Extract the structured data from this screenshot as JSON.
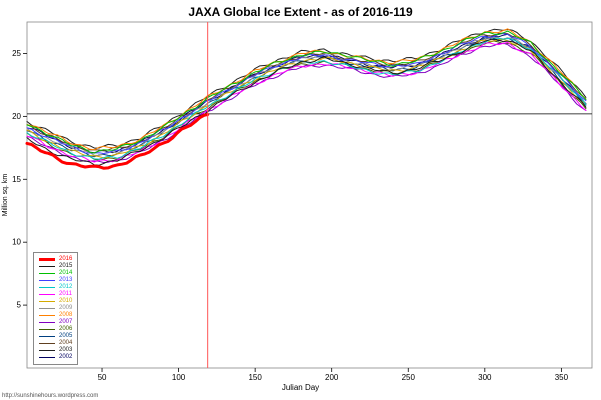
{
  "title": "JAXA Global Ice Extent - as of 2016-119",
  "watermark": "http://sunshinehours.wordpress.com",
  "chart_data": {
    "type": "line",
    "title": "JAXA Global Ice Extent - as of 2016-119",
    "xlabel": "Julian Day",
    "ylabel": "Million sq. km",
    "xlim": [
      1,
      370
    ],
    "ylim": [
      0,
      27.5
    ],
    "x_ticks": [
      50,
      100,
      150,
      200,
      250,
      300,
      350
    ],
    "y_ticks": [
      5,
      10,
      15,
      20,
      25
    ],
    "grid": false,
    "legend_position": "bottom-left",
    "ref_line_h": 20.2,
    "ref_line_v": 119,
    "x": [
      1,
      15,
      30,
      45,
      60,
      75,
      90,
      105,
      119,
      135,
      150,
      165,
      180,
      195,
      210,
      225,
      240,
      255,
      270,
      285,
      300,
      315,
      330,
      345,
      366
    ],
    "series": [
      {
        "name": "2016",
        "color": "#FF0000",
        "width": 3,
        "values": [
          17.8,
          17.0,
          16.2,
          15.9,
          16.1,
          16.8,
          17.9,
          19.1,
          20.2
        ]
      },
      {
        "name": "2015",
        "color": "#1A1A1A",
        "width": 1,
        "values": [
          18.2,
          17.3,
          16.6,
          16.2,
          16.5,
          17.3,
          18.3,
          19.4,
          20.5,
          21.7,
          22.7,
          23.6,
          24.3,
          24.6,
          24.2,
          23.8,
          23.4,
          23.8,
          24.4,
          25.2,
          26.0,
          26.1,
          25.2,
          23.3,
          20.7
        ]
      },
      {
        "name": "2014",
        "color": "#00C000",
        "width": 1,
        "values": [
          19.4,
          18.6,
          17.7,
          17.2,
          17.4,
          18.1,
          19.1,
          20.3,
          21.4,
          22.5,
          23.5,
          24.3,
          24.9,
          25.1,
          24.9,
          24.4,
          24.1,
          24.4,
          25.1,
          25.9,
          26.6,
          26.7,
          25.8,
          24.0,
          21.4
        ]
      },
      {
        "name": "2013",
        "color": "#4040FF",
        "width": 1,
        "values": [
          19.1,
          18.3,
          17.6,
          17.0,
          17.2,
          17.9,
          18.9,
          20.1,
          21.2,
          22.3,
          23.3,
          24.1,
          24.7,
          24.9,
          24.5,
          24.2,
          24.0,
          24.1,
          24.9,
          25.7,
          26.4,
          26.5,
          25.6,
          23.8,
          21.2
        ]
      },
      {
        "name": "2012",
        "color": "#00C8C8",
        "width": 1,
        "values": [
          18.7,
          17.9,
          17.1,
          16.6,
          16.8,
          17.5,
          18.5,
          19.7,
          20.8,
          21.9,
          22.9,
          23.7,
          24.2,
          24.4,
          24.0,
          23.6,
          23.3,
          23.6,
          24.3,
          25.2,
          26.0,
          26.2,
          25.4,
          23.6,
          21.0
        ]
      },
      {
        "name": "2011",
        "color": "#FF00FF",
        "width": 1,
        "values": [
          18.5,
          17.6,
          16.9,
          16.4,
          16.6,
          17.2,
          18.2,
          19.4,
          20.5,
          21.6,
          22.6,
          23.4,
          24.0,
          24.2,
          23.9,
          23.6,
          23.2,
          23.5,
          24.2,
          25.0,
          25.7,
          25.8,
          24.9,
          23.1,
          20.5
        ]
      },
      {
        "name": "2010",
        "color": "#D4AA00",
        "width": 1,
        "values": [
          18.8,
          18.0,
          17.2,
          16.8,
          16.9,
          17.6,
          18.6,
          19.8,
          20.9,
          22.0,
          23.0,
          23.8,
          24.4,
          24.6,
          24.3,
          23.9,
          23.6,
          23.9,
          24.5,
          25.3,
          26.0,
          26.1,
          25.2,
          23.4,
          20.8
        ]
      },
      {
        "name": "2009",
        "color": "#909090",
        "width": 1,
        "values": [
          19.0,
          18.2,
          17.5,
          17.0,
          17.1,
          17.8,
          18.8,
          20.0,
          21.1,
          22.2,
          23.2,
          24.0,
          24.6,
          24.8,
          24.4,
          24.0,
          23.8,
          24.0,
          24.7,
          25.5,
          26.2,
          26.3,
          25.4,
          23.6,
          21.0
        ]
      },
      {
        "name": "2008",
        "color": "#FF8000",
        "width": 1,
        "values": [
          19.5,
          18.7,
          17.9,
          17.4,
          17.6,
          18.2,
          19.2,
          20.4,
          21.5,
          22.6,
          23.6,
          24.4,
          25.0,
          25.2,
          24.8,
          24.5,
          24.3,
          24.5,
          25.2,
          26.0,
          26.7,
          26.8,
          25.9,
          24.1,
          21.5
        ]
      },
      {
        "name": "2007",
        "color": "#8000C0",
        "width": 1,
        "values": [
          18.4,
          17.5,
          16.8,
          16.3,
          16.5,
          17.1,
          18.1,
          19.3,
          20.4,
          21.5,
          22.5,
          23.3,
          23.9,
          24.1,
          23.8,
          23.4,
          23.1,
          23.4,
          24.0,
          24.9,
          25.6,
          25.7,
          24.8,
          23.0,
          20.4
        ]
      },
      {
        "name": "2006",
        "color": "#406000",
        "width": 1,
        "values": [
          18.6,
          17.8,
          17.0,
          16.6,
          16.7,
          17.4,
          18.4,
          19.6,
          20.7,
          21.8,
          22.8,
          23.6,
          24.1,
          24.3,
          24.0,
          23.7,
          23.4,
          23.7,
          24.3,
          25.1,
          25.8,
          25.9,
          25.0,
          23.2,
          20.6
        ]
      },
      {
        "name": "2005",
        "color": "#004080",
        "width": 1,
        "values": [
          18.9,
          18.1,
          17.3,
          16.9,
          17.0,
          17.7,
          18.7,
          19.9,
          21.0,
          22.1,
          23.1,
          23.9,
          24.5,
          24.7,
          24.3,
          23.9,
          23.7,
          23.9,
          24.6,
          25.4,
          26.1,
          26.2,
          25.3,
          23.5,
          20.9
        ]
      },
      {
        "name": "2004",
        "color": "#604020",
        "width": 1,
        "values": [
          19.3,
          18.5,
          17.7,
          17.3,
          17.4,
          18.0,
          19.0,
          20.2,
          21.3,
          22.4,
          23.4,
          24.2,
          24.8,
          25.0,
          24.6,
          24.3,
          24.1,
          24.3,
          24.9,
          25.8,
          26.5,
          26.6,
          25.7,
          23.9,
          21.3
        ]
      },
      {
        "name": "2003",
        "color": "#202020",
        "width": 1,
        "values": [
          19.6,
          18.8,
          18.0,
          17.5,
          17.7,
          18.3,
          19.3,
          20.5,
          21.6,
          22.7,
          23.7,
          24.5,
          25.1,
          25.3,
          24.9,
          24.6,
          24.4,
          24.6,
          25.3,
          26.1,
          26.8,
          26.9,
          26.0,
          24.2,
          21.6
        ]
      },
      {
        "name": "2002",
        "color": "#000060",
        "width": 1,
        "values": [
          19.2,
          18.4,
          17.6,
          17.1,
          17.3,
          17.9,
          18.9,
          20.1,
          21.2,
          22.3,
          23.3,
          24.1,
          24.7,
          24.9,
          24.5,
          24.1,
          23.9,
          24.1,
          24.8,
          25.6,
          26.3,
          26.4,
          25.5,
          23.7,
          21.1
        ]
      }
    ]
  }
}
